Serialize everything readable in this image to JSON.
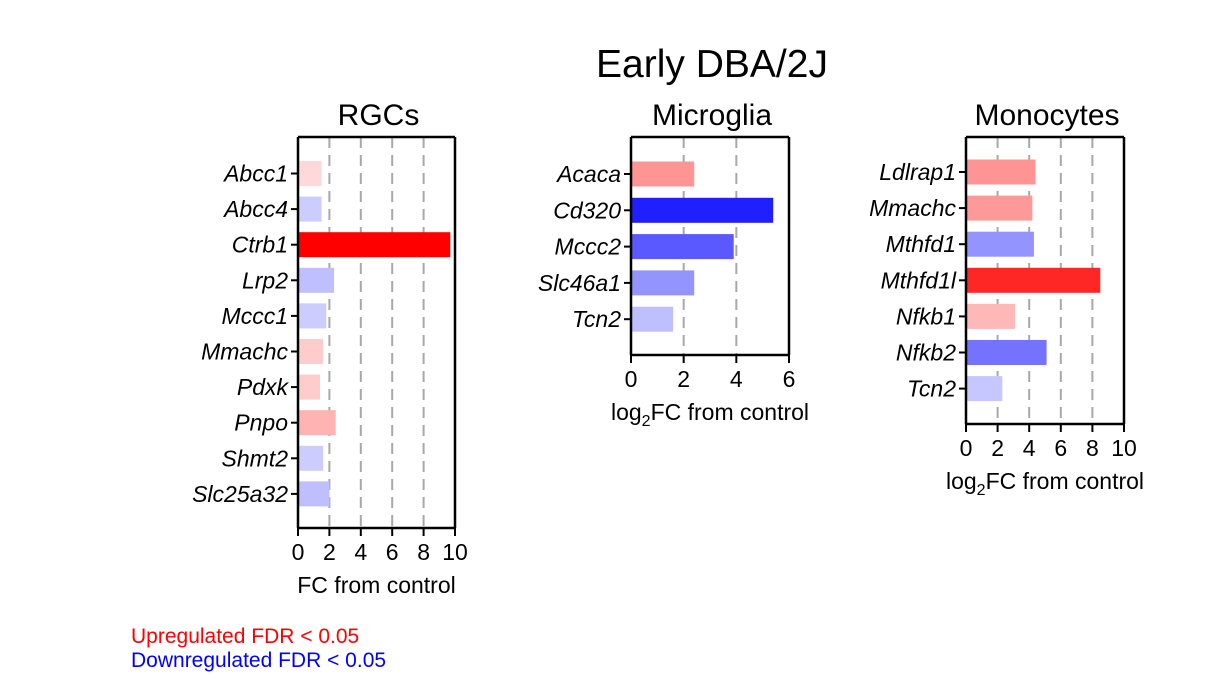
{
  "figure_title": "Early DBA/2J",
  "colors": {
    "up": "#ff0000",
    "down": "#0000ff",
    "axis": "#000000",
    "grid": "#a8a8a8"
  },
  "legend": {
    "up_label": "Upregulated FDR < 0.05",
    "down_label": "Downregulated FDR < 0.05"
  },
  "chart_data": [
    {
      "type": "bar",
      "orientation": "horizontal",
      "title": "RGCs",
      "xlabel": "FC from control",
      "xlim": [
        0,
        10
      ],
      "xticks": [
        0,
        2,
        4,
        6,
        8,
        10
      ],
      "gridlines_x": [
        2,
        4,
        6,
        8
      ],
      "categories": [
        "Abcc1",
        "Abcc4",
        "Ctrb1",
        "Lrp2",
        "Mccc1",
        "Mmachc",
        "Pdxk",
        "Pnpo",
        "Shmt2",
        "Slc25a32"
      ],
      "values": [
        1.5,
        1.5,
        9.7,
        2.3,
        1.8,
        1.6,
        1.4,
        2.4,
        1.6,
        2.0
      ],
      "direction": [
        "up",
        "down",
        "up",
        "down",
        "down",
        "up",
        "up",
        "up",
        "down",
        "down"
      ],
      "opacity": [
        0.15,
        0.2,
        1.0,
        0.25,
        0.2,
        0.2,
        0.2,
        0.3,
        0.2,
        0.25
      ]
    },
    {
      "type": "bar",
      "orientation": "horizontal",
      "title": "Microglia",
      "xlabel": "log2FC from control",
      "xlim": [
        0,
        6
      ],
      "xticks": [
        0,
        2,
        4,
        6
      ],
      "gridlines_x": [
        2,
        4
      ],
      "categories": [
        "Acaca",
        "Cd320",
        "Mccc2",
        "Slc46a1",
        "Tcn2"
      ],
      "values": [
        2.4,
        5.4,
        3.9,
        2.4,
        1.6
      ],
      "direction": [
        "up",
        "down",
        "down",
        "down",
        "down"
      ],
      "opacity": [
        0.42,
        0.88,
        0.65,
        0.42,
        0.25
      ]
    },
    {
      "type": "bar",
      "orientation": "horizontal",
      "title": "Monocytes",
      "xlabel": "log2FC from control",
      "xlim": [
        0,
        10
      ],
      "xticks": [
        0,
        2,
        4,
        6,
        8,
        10
      ],
      "gridlines_x": [
        2,
        4,
        6,
        8
      ],
      "categories": [
        "Ldlrap1",
        "Mmachc",
        "Mthfd1",
        "Mthfd1l",
        "Nfkb1",
        "Nfkb2",
        "Tcn2"
      ],
      "values": [
        4.4,
        4.2,
        4.3,
        8.5,
        3.1,
        5.1,
        2.3
      ],
      "direction": [
        "up",
        "up",
        "down",
        "up",
        "up",
        "down",
        "down"
      ],
      "opacity": [
        0.42,
        0.4,
        0.42,
        0.85,
        0.28,
        0.55,
        0.22
      ]
    }
  ]
}
